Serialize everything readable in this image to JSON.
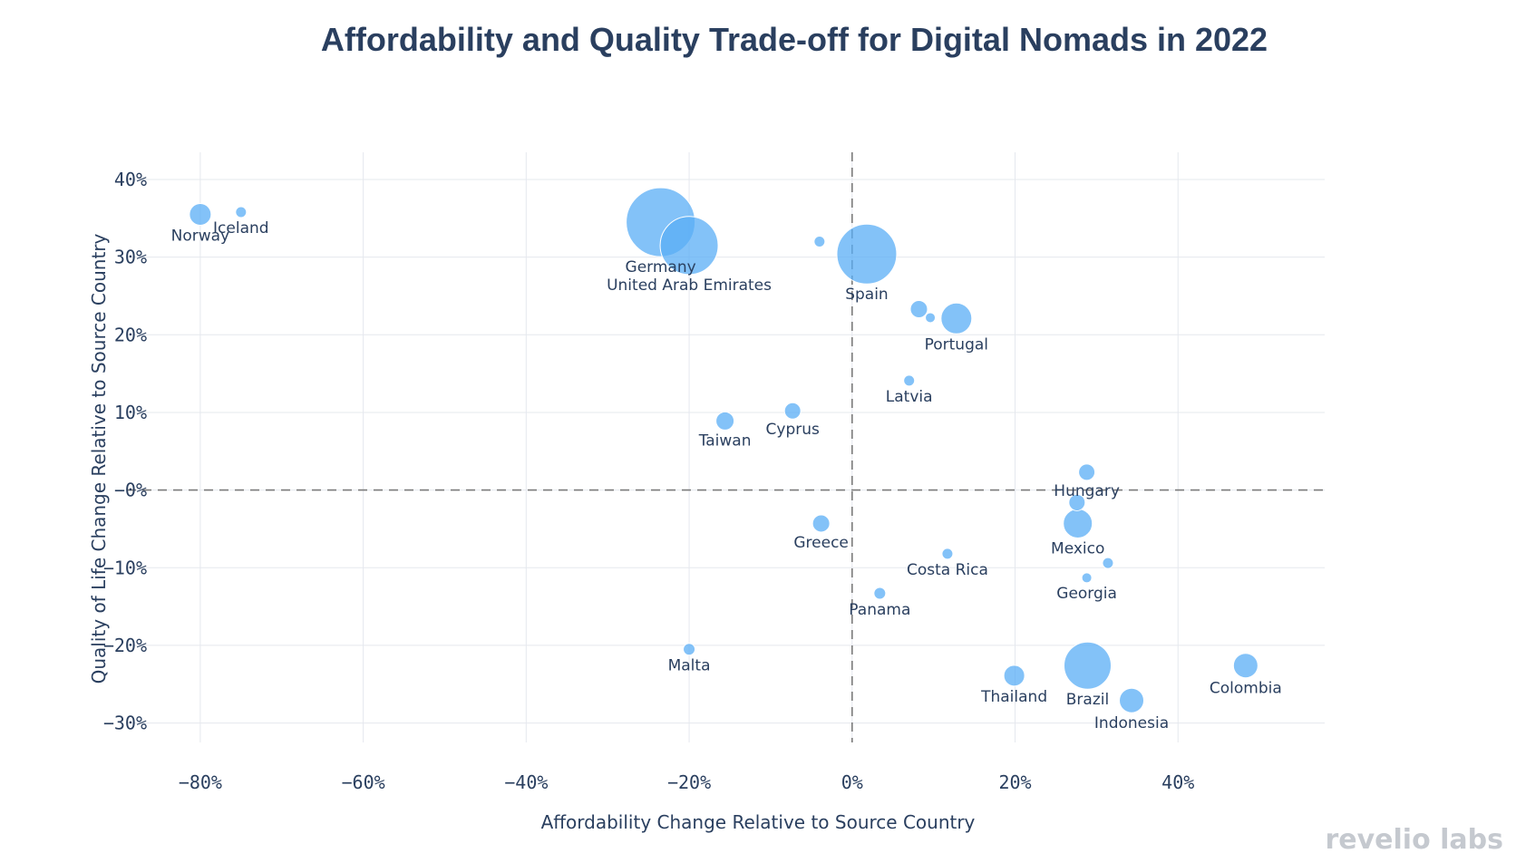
{
  "chart_data": {
    "type": "scatter",
    "title": "Affordability and Quality Trade-off for Digital Nomads in 2022",
    "xlabel": "Affordability Change Relative to Source Country",
    "ylabel": "Quality of Life Change Relative to Source Country",
    "xlim": [
      -89,
      58
    ],
    "ylim": [
      -32.5,
      43.5
    ],
    "xticks": [
      -80,
      -60,
      -40,
      -20,
      0,
      20,
      40
    ],
    "xtick_labels": [
      "−80%",
      "−60%",
      "−40%",
      "−20%",
      "0%",
      "20%",
      "40%"
    ],
    "yticks": [
      40,
      30,
      20,
      10,
      0,
      -10,
      -20,
      -30
    ],
    "ytick_labels": [
      "40%",
      "30%",
      "20%",
      "10%",
      "−0%",
      "−10%",
      "−20%",
      "−30%"
    ],
    "grid": true,
    "reference_lines": {
      "x": 0,
      "y": 0
    },
    "bubble_color": "#5aaef5",
    "points": [
      {
        "name": "Norway",
        "x": -80,
        "y": 35.5,
        "size": 12,
        "label": "Norway"
      },
      {
        "name": "Iceland",
        "x": -75,
        "y": 35.8,
        "size": 6,
        "label": "Iceland"
      },
      {
        "name": "Germany",
        "x": -23.5,
        "y": 34.5,
        "size": 38,
        "label": "Germany"
      },
      {
        "name": "United Arab Emirates",
        "x": -20,
        "y": 31.5,
        "size": 32,
        "label": "United Arab Emirates"
      },
      {
        "name": "",
        "x": -4,
        "y": 32,
        "size": 6,
        "label": ""
      },
      {
        "name": "Spain",
        "x": 1.8,
        "y": 30.4,
        "size": 33,
        "label": "Spain"
      },
      {
        "name": "",
        "x": 8.2,
        "y": 23.3,
        "size": 9.5,
        "label": ""
      },
      {
        "name": "",
        "x": 9.6,
        "y": 22.2,
        "size": 5.5,
        "label": ""
      },
      {
        "name": "Portugal",
        "x": 12.8,
        "y": 22.1,
        "size": 17,
        "label": "Portugal"
      },
      {
        "name": "Latvia",
        "x": 7,
        "y": 14.1,
        "size": 6,
        "label": "Latvia"
      },
      {
        "name": "Cyprus",
        "x": -7.3,
        "y": 10.2,
        "size": 9,
        "label": "Cyprus"
      },
      {
        "name": "Taiwan",
        "x": -15.6,
        "y": 8.9,
        "size": 10,
        "label": "Taiwan"
      },
      {
        "name": "Hungary",
        "x": 28.8,
        "y": 2.3,
        "size": 9,
        "label": "Hungary"
      },
      {
        "name": "",
        "x": 27.6,
        "y": -1.6,
        "size": 9,
        "label": ""
      },
      {
        "name": "Mexico",
        "x": 27.7,
        "y": -4.3,
        "size": 16,
        "label": "Mexico"
      },
      {
        "name": "Greece",
        "x": -3.8,
        "y": -4.3,
        "size": 9.5,
        "label": "Greece"
      },
      {
        "name": "Costa Rica",
        "x": 11.7,
        "y": -8.2,
        "size": 6,
        "label": "Costa Rica"
      },
      {
        "name": "",
        "x": 31.4,
        "y": -9.4,
        "size": 6,
        "label": ""
      },
      {
        "name": "Georgia",
        "x": 28.8,
        "y": -11.3,
        "size": 5.5,
        "label": "Georgia"
      },
      {
        "name": "Panama",
        "x": 3.4,
        "y": -13.3,
        "size": 6.5,
        "label": "Panama"
      },
      {
        "name": "Malta",
        "x": -20,
        "y": -20.5,
        "size": 6.5,
        "label": "Malta"
      },
      {
        "name": "Thailand",
        "x": 19.9,
        "y": -23.9,
        "size": 11.5,
        "label": "Thailand"
      },
      {
        "name": "Brazil",
        "x": 28.9,
        "y": -22.6,
        "size": 26,
        "label": "Brazil"
      },
      {
        "name": "Indonesia",
        "x": 34.3,
        "y": -27.1,
        "size": 13.5,
        "label": "Indonesia"
      },
      {
        "name": "Colombia",
        "x": 48.3,
        "y": -22.6,
        "size": 13.5,
        "label": "Colombia"
      }
    ]
  },
  "branding": {
    "logo_text": "revelio labs"
  }
}
